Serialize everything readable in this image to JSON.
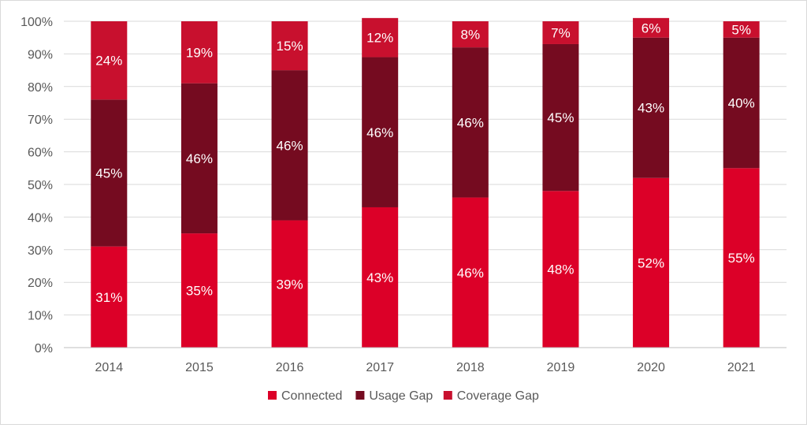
{
  "chart_data": {
    "type": "bar",
    "stacked": true,
    "normalized": true,
    "categories": [
      "2014",
      "2015",
      "2016",
      "2017",
      "2018",
      "2019",
      "2020",
      "2021"
    ],
    "series": [
      {
        "name": "Connected",
        "color": "#dc0028",
        "values": [
          31,
          35,
          39,
          43,
          46,
          48,
          52,
          55
        ]
      },
      {
        "name": "Usage Gap",
        "color": "#750b20",
        "values": [
          45,
          46,
          46,
          46,
          46,
          45,
          43,
          40
        ]
      },
      {
        "name": "Coverage Gap",
        "color": "#c8102e",
        "values": [
          24,
          19,
          15,
          12,
          8,
          7,
          6,
          5
        ]
      }
    ],
    "ylim": [
      0,
      100
    ],
    "yticks": [
      "0%",
      "10%",
      "20%",
      "30%",
      "40%",
      "50%",
      "60%",
      "70%",
      "80%",
      "90%",
      "100%"
    ],
    "grid": true,
    "legend": "bottom",
    "title": "",
    "xlabel": "",
    "ylabel": ""
  }
}
